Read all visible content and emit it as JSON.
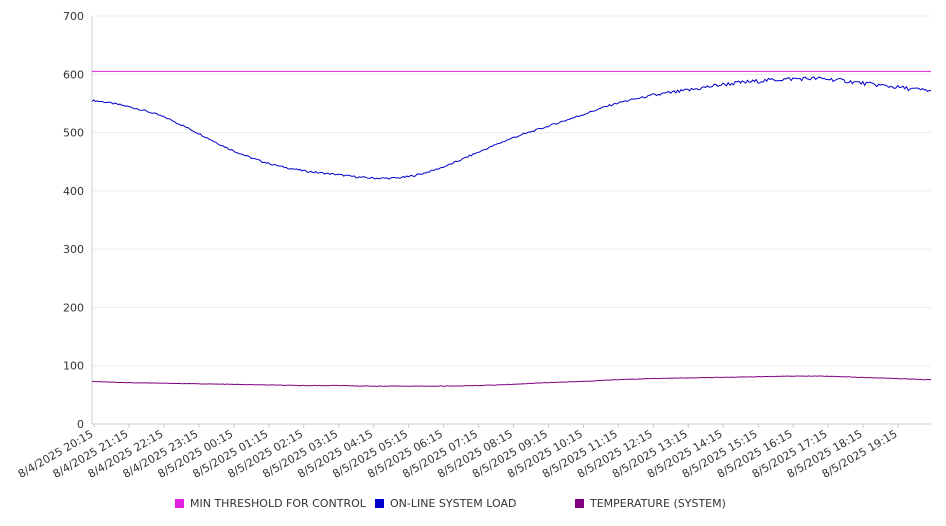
{
  "chart_data": {
    "type": "line",
    "title": "",
    "xlabel": "",
    "ylabel": "",
    "ylim": [
      0,
      700
    ],
    "yticks": [
      0,
      100,
      200,
      300,
      400,
      500,
      600,
      700
    ],
    "grid": true,
    "legend_position": "bottom",
    "x_tick_labels": [
      "8/4/2025 20:15",
      "8/4/2025 21:15",
      "8/4/2025 22:15",
      "8/4/2025 23:15",
      "8/5/2025 00:15",
      "8/5/2025 01:15",
      "8/5/2025 02:15",
      "8/5/2025 03:15",
      "8/5/2025 04:15",
      "8/5/2025 05:15",
      "8/5/2025 06:15",
      "8/5/2025 07:15",
      "8/5/2025 08:15",
      "8/5/2025 09:15",
      "8/5/2025 10:15",
      "8/5/2025 11:15",
      "8/5/2025 12:15",
      "8/5/2025 13:15",
      "8/5/2025 14:15",
      "8/5/2025 15:15",
      "8/5/2025 16:15",
      "8/5/2025 17:15",
      "8/5/2025 18:15",
      "8/5/2025 19:15"
    ],
    "x_range": [
      "8/4/2025 20:15",
      "8/5/2025 20:15"
    ],
    "series": [
      {
        "name": "MIN THRESHOLD FOR CONTROL",
        "color": "#e020e0",
        "values": [
          605,
          605,
          605,
          605,
          605,
          605,
          605,
          605,
          605,
          605,
          605,
          605,
          605,
          605,
          605,
          605,
          605,
          605,
          605,
          605,
          605,
          605,
          605,
          605,
          605
        ]
      },
      {
        "name": "ON-LINE SYSTEM LOAD",
        "color": "#0000cc",
        "values": [
          555,
          545,
          528,
          500,
          470,
          448,
          435,
          428,
          422,
          424,
          440,
          465,
          490,
          510,
          530,
          550,
          563,
          572,
          582,
          588,
          592,
          592,
          585,
          578,
          572
        ]
      },
      {
        "name": "TEMPERATURE (SYSTEM)",
        "color": "#800080",
        "values": [
          73,
          71,
          70,
          69,
          68,
          67,
          66,
          66,
          65,
          65,
          65,
          66,
          68,
          71,
          73,
          76,
          78,
          79,
          80,
          81,
          82,
          82,
          80,
          78,
          76
        ]
      }
    ]
  }
}
